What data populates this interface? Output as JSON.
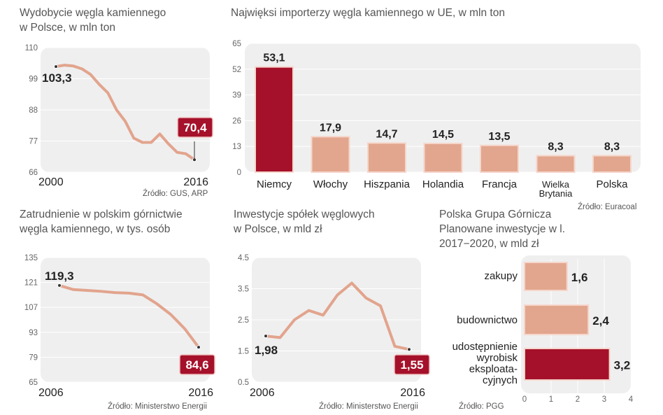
{
  "colors": {
    "line": "#e2a48d",
    "bar": "#e2a68e",
    "accent": "#a5112a",
    "panel": "#efefef",
    "grid": "#ffffff"
  },
  "chart_data": [
    {
      "id": "production",
      "type": "line",
      "title": "Wydobycie węgla kamiennego w Polsce, w mln ton",
      "source": "Źródło:  GUS, ARP",
      "x": [
        2000,
        2001,
        2002,
        2003,
        2004,
        2005,
        2006,
        2007,
        2008,
        2009,
        2010,
        2011,
        2012,
        2013,
        2014,
        2015,
        2016
      ],
      "values": [
        103.3,
        103.8,
        103.5,
        102.5,
        100.5,
        97,
        94,
        88,
        84,
        78,
        76.5,
        76.5,
        79.5,
        76,
        73,
        72.5,
        70.4
      ],
      "ylim": [
        66,
        110
      ],
      "yticks": [
        66,
        77,
        88,
        99,
        110
      ],
      "xlabels": [
        "2000",
        "2016"
      ],
      "first_label": "103,3",
      "last_label": "70,4"
    },
    {
      "id": "importers",
      "type": "bar",
      "title": "Najwięksi importerzy węgla kamiennego w UE, w mln ton",
      "source": "Źródło: Euracoal",
      "categories": [
        "Niemcy",
        "Włochy",
        "Hiszpania",
        "Holandia",
        "Francja",
        "Wielka Brytania",
        "Polska"
      ],
      "values": [
        53.1,
        17.9,
        14.7,
        14.5,
        13.5,
        8.3,
        8.3
      ],
      "labels": [
        "53,1",
        "17,9",
        "14,7",
        "14,5",
        "13,5",
        "8,3",
        "8,3"
      ],
      "ylim": [
        0,
        65
      ],
      "yticks": [
        0,
        13,
        26,
        39,
        52,
        65
      ],
      "highlight": "Niemcy"
    },
    {
      "id": "employment",
      "type": "line",
      "title": "Zatrudnienie w polskim górnictwie węgla kamiennego, w tys. osób",
      "source": "Źródło: Ministerstwo Energii",
      "x": [
        2006,
        2007,
        2008,
        2009,
        2010,
        2011,
        2012,
        2013,
        2014,
        2015,
        2016
      ],
      "values": [
        119.3,
        117,
        116.5,
        116,
        115.3,
        115,
        114,
        109,
        103,
        95,
        84.6
      ],
      "ylim": [
        65,
        135
      ],
      "yticks": [
        65,
        79,
        93,
        107,
        121,
        135
      ],
      "xlabels": [
        "2006",
        "2016"
      ],
      "first_label": "119,3",
      "last_label": "84,6"
    },
    {
      "id": "investment",
      "type": "line",
      "title": "Inwestycje spółek węglowych w Polsce, w mld zł",
      "source": "Źródło: Ministerstwo Energii",
      "x": [
        2006,
        2007,
        2008,
        2009,
        2010,
        2011,
        2012,
        2013,
        2014,
        2015,
        2016
      ],
      "values": [
        1.98,
        1.93,
        2.5,
        2.8,
        2.65,
        3.3,
        3.68,
        3.2,
        2.95,
        1.65,
        1.55
      ],
      "ylim": [
        0.5,
        4.5
      ],
      "yticks": [
        0.5,
        1.5,
        2.5,
        3.5,
        4.5
      ],
      "yticklabels": [
        "0.5",
        "1.5",
        "2.5",
        "3.5",
        "4.5"
      ],
      "xlabels": [
        "2006",
        "2016"
      ],
      "first_label": "1,98",
      "last_label": "1,55"
    },
    {
      "id": "pgg",
      "type": "bar",
      "orientation": "horizontal",
      "title": "Polska Grupa Górnicza Planowane inwestycje w l. 2017−2020, w mld zł",
      "source": "Źródło: PGG",
      "categories": [
        "zakupy",
        "budownictwo",
        "udostępnienie wyrobisk eksploata- cyjnych"
      ],
      "values": [
        1.6,
        2.4,
        3.2
      ],
      "labels": [
        "1,6",
        "2,4",
        "3,2"
      ],
      "xlim": [
        0,
        4
      ],
      "xticks": [
        0,
        1,
        2,
        3,
        4
      ],
      "highlight": "udostępnienie wyrobisk eksploata- cyjnych"
    }
  ],
  "titles": {
    "production": [
      "Wydobycie węgla kamiennego",
      "w Polsce, w mln ton"
    ],
    "importers": [
      "Najwięksi importerzy węgla kamiennego w UE, w mln ton"
    ],
    "employment": [
      "Zatrudnienie w polskim górnictwie",
      "węgla kamiennego, w tys. osób"
    ],
    "investment": [
      "Inwestycje spółek węglowych",
      "w Polsce, w mld zł"
    ],
    "pgg": [
      "Polska Grupa Górnicza",
      "Planowane inwestycje w l.",
      "2017−2020, w mld zł"
    ]
  },
  "pgg_label_lines": [
    [
      "zakupy"
    ],
    [
      "budownictwo"
    ],
    [
      "udostępnienie",
      "wyrobisk",
      "eksploata-",
      "cyjnych"
    ]
  ],
  "importer_label_lines": [
    [
      "Niemcy"
    ],
    [
      "Włochy"
    ],
    [
      "Hiszpania"
    ],
    [
      "Holandia"
    ],
    [
      "Francja"
    ],
    [
      "Wielka",
      "Brytania"
    ],
    [
      "Polska"
    ]
  ]
}
